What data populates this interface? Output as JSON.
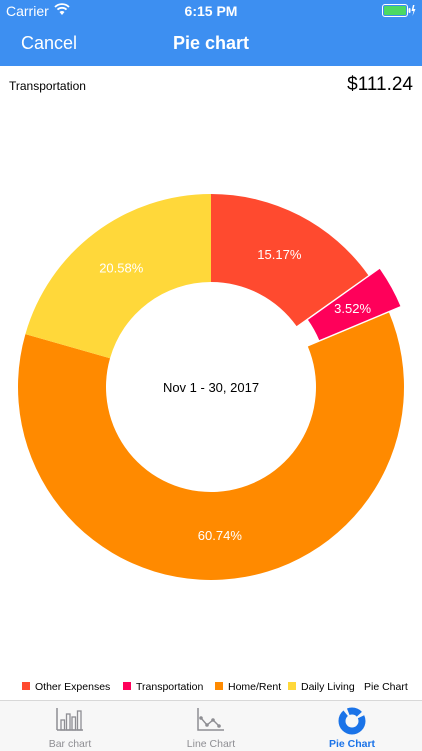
{
  "status": {
    "carrier": "Carrier",
    "time": "6:15 PM"
  },
  "nav": {
    "cancel": "Cancel",
    "title": "Pie chart"
  },
  "selection": {
    "label": "Transportation",
    "amount": "$111.24"
  },
  "chart_data": {
    "type": "pie",
    "center_text": "Nov 1 - 30, 2017",
    "description": "Pie Chart",
    "series": [
      {
        "name": "Other Expenses",
        "value": 15.17,
        "label": "15.17%",
        "color": "#ff4a2f"
      },
      {
        "name": "Transportation",
        "value": 3.52,
        "label": "3.52%",
        "color": "#ff005a",
        "highlighted": true
      },
      {
        "name": "Home/Rent",
        "value": 60.74,
        "label": "60.74%",
        "color": "#ff8a00"
      },
      {
        "name": "Daily Living",
        "value": 20.58,
        "label": "20.58%",
        "color": "#ffd83a"
      }
    ]
  },
  "tabs": [
    {
      "label": "Bar chart",
      "icon": "bar-chart-icon"
    },
    {
      "label": "Line Chart",
      "icon": "line-chart-icon"
    },
    {
      "label": "Pie Chart",
      "icon": "pie-chart-icon",
      "active": true
    }
  ]
}
